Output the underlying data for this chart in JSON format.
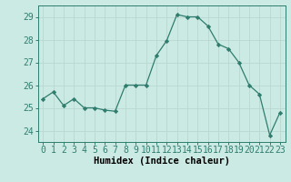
{
  "x": [
    0,
    1,
    2,
    3,
    4,
    5,
    6,
    7,
    8,
    9,
    10,
    11,
    12,
    13,
    14,
    15,
    16,
    17,
    18,
    19,
    20,
    21,
    22,
    23
  ],
  "y": [
    25.4,
    25.7,
    25.1,
    25.4,
    25.0,
    25.0,
    24.9,
    24.85,
    26.0,
    26.0,
    26.0,
    27.3,
    27.95,
    29.1,
    29.0,
    29.0,
    28.6,
    27.8,
    27.6,
    27.0,
    26.0,
    25.6,
    23.8,
    24.8
  ],
  "line_color": "#2e7d6e",
  "marker": "D",
  "marker_size": 2.2,
  "bg_color": "#cceae4",
  "grid_color": "#b8d8d2",
  "xlabel": "Humidex (Indice chaleur)",
  "xlabel_fontsize": 7.5,
  "tick_fontsize": 7.0,
  "ylim": [
    23.5,
    29.5
  ],
  "yticks": [
    24,
    25,
    26,
    27,
    28,
    29
  ],
  "xticks": [
    0,
    1,
    2,
    3,
    4,
    5,
    6,
    7,
    8,
    9,
    10,
    11,
    12,
    13,
    14,
    15,
    16,
    17,
    18,
    19,
    20,
    21,
    22,
    23
  ]
}
